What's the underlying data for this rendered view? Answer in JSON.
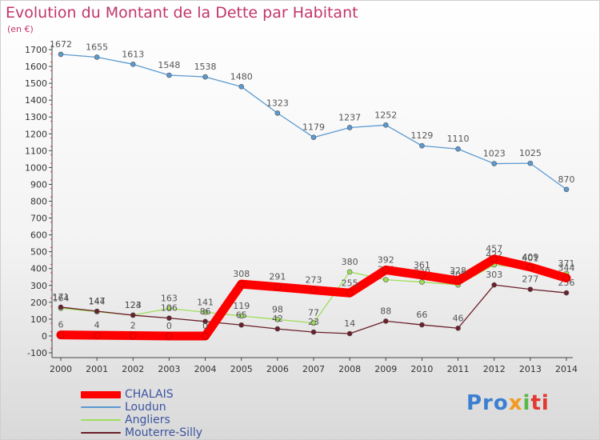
{
  "header": {
    "title": "Evolution du Montant de la Dette par Habitant",
    "unit": "(en €)"
  },
  "brand": {
    "parts": [
      "Pro",
      "x",
      "i",
      "ti"
    ]
  },
  "chart_data": {
    "type": "line",
    "title": "Evolution du Montant de la Dette par Habitant",
    "ylabel": "(en €)",
    "xlabel": "",
    "x": [
      "2000",
      "2001",
      "2002",
      "2003",
      "2004",
      "2005",
      "2006",
      "2007",
      "2008",
      "2009",
      "2010",
      "2011",
      "2012",
      "2013",
      "2014"
    ],
    "ylim": [
      -100,
      1700
    ],
    "yticks": [
      -100,
      0,
      100,
      200,
      300,
      400,
      500,
      600,
      700,
      800,
      900,
      1000,
      1100,
      1200,
      1300,
      1400,
      1500,
      1600,
      1700
    ],
    "grid": false,
    "legend": "bottom-left",
    "series": [
      {
        "name": "Loudun",
        "color": "#5b9ad0",
        "values": [
          1672,
          1655,
          1613,
          1548,
          1538,
          1480,
          1323,
          1179,
          1237,
          1252,
          1129,
          1110,
          1023,
          1025,
          870
        ]
      },
      {
        "name": "Angliers",
        "color": "#9ede5a",
        "values": [
          164,
          144,
          124,
          163,
          141,
          119,
          98,
          77,
          380,
          334,
          320,
          303,
          422,
          401,
          371
        ]
      },
      {
        "name": "Mouterre-Silly",
        "color": "#6b1f2a",
        "values": [
          171,
          147,
          123,
          106,
          86,
          65,
          42,
          23,
          14,
          88,
          66,
          46,
          303,
          277,
          256
        ]
      },
      {
        "name": "CHALAIS",
        "color": "#ff0000",
        "values": [
          6,
          4,
          2,
          0,
          0,
          308,
          291,
          273,
          255,
          392,
          361,
          328,
          457,
          409,
          344
        ]
      }
    ]
  }
}
